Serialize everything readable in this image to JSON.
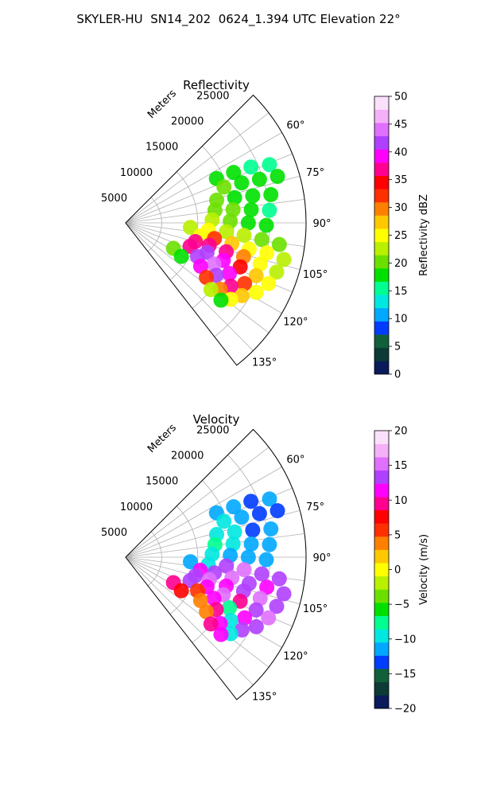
{
  "figure": {
    "title": "SKYLER-HU  SN14_202  0624_1.394 UTC Elevation 22°"
  },
  "chart_data": [
    {
      "type": "heatmap",
      "projection": "polar-sector",
      "title": "Reflectivity",
      "radial_axis_label": "Meters",
      "radial_ticks": [
        5000,
        10000,
        15000,
        20000,
        25000
      ],
      "radial_tick_labels": [
        "5000",
        "10000",
        "15000",
        "20000",
        "25000"
      ],
      "r_range": [
        0,
        25000
      ],
      "angle_ticks": [
        60,
        75,
        90,
        105,
        120,
        135
      ],
      "angle_tick_labels": [
        "60°",
        "75°",
        "90°",
        "105°",
        "120°",
        "135°"
      ],
      "angle_range": [
        45,
        142
      ],
      "grid": true,
      "colorbar": {
        "label": "Reflectivity dBZ",
        "range": [
          0,
          50
        ],
        "ticks": [
          0,
          5,
          10,
          15,
          20,
          25,
          30,
          35,
          40,
          45,
          50
        ],
        "tick_labels": [
          "0",
          "5",
          "10",
          "15",
          "20",
          "25",
          "30",
          "35",
          "40",
          "45",
          "50"
        ],
        "colors": [
          "#0a1a5a",
          "#0c3a34",
          "#11603a",
          "#003cff",
          "#00a8ff",
          "#00e8e0",
          "#00ff90",
          "#00e000",
          "#6be000",
          "#b8f000",
          "#ffff00",
          "#ffc800",
          "#ff8000",
          "#ff3000",
          "#ff0000",
          "#ff0090",
          "#ff00ff",
          "#b040ff",
          "#e070ff",
          "#f4b0f8",
          "#fbe0fb"
        ]
      },
      "cells": [
        {
          "angle": 64,
          "r": 14000,
          "value": 17
        },
        {
          "angle": 65,
          "r": 16500,
          "value": 18
        },
        {
          "angle": 66,
          "r": 19000,
          "value": 16
        },
        {
          "angle": 68,
          "r": 21500,
          "value": 15
        },
        {
          "angle": 70,
          "r": 14500,
          "value": 20
        },
        {
          "angle": 71,
          "r": 17000,
          "value": 19
        },
        {
          "angle": 72,
          "r": 19500,
          "value": 18
        },
        {
          "angle": 73,
          "r": 22000,
          "value": 17
        },
        {
          "angle": 76,
          "r": 13000,
          "value": 21
        },
        {
          "angle": 77,
          "r": 15500,
          "value": 19
        },
        {
          "angle": 78,
          "r": 18000,
          "value": 18
        },
        {
          "angle": 79,
          "r": 20500,
          "value": 17
        },
        {
          "angle": 82,
          "r": 12500,
          "value": 21
        },
        {
          "angle": 83,
          "r": 15000,
          "value": 20
        },
        {
          "angle": 84,
          "r": 17500,
          "value": 19
        },
        {
          "angle": 85,
          "r": 20000,
          "value": 16
        },
        {
          "angle": 88,
          "r": 12000,
          "value": 22
        },
        {
          "angle": 89,
          "r": 14500,
          "value": 21
        },
        {
          "angle": 90,
          "r": 17000,
          "value": 19
        },
        {
          "angle": 91,
          "r": 19500,
          "value": 18
        },
        {
          "angle": 94,
          "r": 9000,
          "value": 22
        },
        {
          "angle": 95,
          "r": 11500,
          "value": 24
        },
        {
          "angle": 95,
          "r": 14000,
          "value": 23
        },
        {
          "angle": 96,
          "r": 16500,
          "value": 22
        },
        {
          "angle": 97,
          "r": 19000,
          "value": 21
        },
        {
          "angle": 98,
          "r": 21500,
          "value": 20
        },
        {
          "angle": 100,
          "r": 10500,
          "value": 26
        },
        {
          "angle": 100,
          "r": 12500,
          "value": 33
        },
        {
          "angle": 101,
          "r": 15000,
          "value": 28
        },
        {
          "angle": 102,
          "r": 17500,
          "value": 26
        },
        {
          "angle": 102,
          "r": 20000,
          "value": 24
        },
        {
          "angle": 103,
          "r": 22500,
          "value": 22
        },
        {
          "angle": 105,
          "r": 10000,
          "value": 36
        },
        {
          "angle": 105,
          "r": 12000,
          "value": 38
        },
        {
          "angle": 106,
          "r": 14500,
          "value": 37
        },
        {
          "angle": 106,
          "r": 17000,
          "value": 30
        },
        {
          "angle": 107,
          "r": 19500,
          "value": 26
        },
        {
          "angle": 108,
          "r": 22000,
          "value": 23
        },
        {
          "angle": 110,
          "r": 9500,
          "value": 37
        },
        {
          "angle": 110,
          "r": 12000,
          "value": 42
        },
        {
          "angle": 111,
          "r": 14500,
          "value": 39
        },
        {
          "angle": 111,
          "r": 17000,
          "value": 34
        },
        {
          "angle": 112,
          "r": 19500,
          "value": 27
        },
        {
          "angle": 113,
          "r": 21500,
          "value": 24
        },
        {
          "angle": 115,
          "r": 11000,
          "value": 41
        },
        {
          "angle": 115,
          "r": 13500,
          "value": 44
        },
        {
          "angle": 116,
          "r": 16000,
          "value": 40
        },
        {
          "angle": 117,
          "r": 18500,
          "value": 33
        },
        {
          "angle": 118,
          "r": 20500,
          "value": 26
        },
        {
          "angle": 120,
          "r": 12000,
          "value": 39
        },
        {
          "angle": 120,
          "r": 14500,
          "value": 42
        },
        {
          "angle": 121,
          "r": 17000,
          "value": 36
        },
        {
          "angle": 122,
          "r": 19000,
          "value": 28
        },
        {
          "angle": 124,
          "r": 13500,
          "value": 32
        },
        {
          "angle": 125,
          "r": 16000,
          "value": 29
        },
        {
          "angle": 126,
          "r": 18000,
          "value": 24
        },
        {
          "angle": 128,
          "r": 15000,
          "value": 22
        },
        {
          "angle": 129,
          "r": 17000,
          "value": 19
        },
        {
          "angle": 118,
          "r": 7500,
          "value": 21
        },
        {
          "angle": 121,
          "r": 9000,
          "value": 18
        }
      ]
    },
    {
      "type": "heatmap",
      "projection": "polar-sector",
      "title": "Velocity",
      "radial_axis_label": "Meters",
      "radial_ticks": [
        5000,
        10000,
        15000,
        20000,
        25000
      ],
      "radial_tick_labels": [
        "5000",
        "10000",
        "15000",
        "20000",
        "25000"
      ],
      "r_range": [
        0,
        25000
      ],
      "angle_ticks": [
        60,
        75,
        90,
        105,
        120,
        135
      ],
      "angle_tick_labels": [
        "60°",
        "75°",
        "90°",
        "105°",
        "120°",
        "135°"
      ],
      "angle_range": [
        45,
        142
      ],
      "grid": true,
      "colorbar": {
        "label": "Velocity (m/s)",
        "range": [
          -20,
          20
        ],
        "ticks": [
          -20,
          -15,
          -10,
          -5,
          0,
          5,
          10,
          15,
          20
        ],
        "tick_labels": [
          "−20",
          "−15",
          "−10",
          "−5",
          "0",
          "5",
          "10",
          "15",
          "20"
        ],
        "colors": [
          "#0a1a5a",
          "#0c3a34",
          "#11603a",
          "#003cff",
          "#00a8ff",
          "#00e8e0",
          "#00ff90",
          "#00e000",
          "#6be000",
          "#b8f000",
          "#ffff00",
          "#ffc800",
          "#ff8000",
          "#ff3000",
          "#ff0000",
          "#ff0090",
          "#ff00ff",
          "#b040ff",
          "#e070ff",
          "#f4b0f8",
          "#fbe0fb"
        ]
      },
      "cells": [
        {
          "angle": 64,
          "r": 14000,
          "value": -11
        },
        {
          "angle": 65,
          "r": 16500,
          "value": -12
        },
        {
          "angle": 66,
          "r": 19000,
          "value": -13
        },
        {
          "angle": 68,
          "r": 21500,
          "value": -12
        },
        {
          "angle": 70,
          "r": 14500,
          "value": -9
        },
        {
          "angle": 71,
          "r": 17000,
          "value": -11
        },
        {
          "angle": 72,
          "r": 19500,
          "value": -14
        },
        {
          "angle": 73,
          "r": 22000,
          "value": -13
        },
        {
          "angle": 76,
          "r": 13000,
          "value": -9
        },
        {
          "angle": 77,
          "r": 15500,
          "value": -10
        },
        {
          "angle": 78,
          "r": 18000,
          "value": -13
        },
        {
          "angle": 79,
          "r": 20500,
          "value": -12
        },
        {
          "angle": 82,
          "r": 12500,
          "value": -8
        },
        {
          "angle": 83,
          "r": 15000,
          "value": -10
        },
        {
          "angle": 84,
          "r": 17500,
          "value": -11
        },
        {
          "angle": 85,
          "r": 20000,
          "value": -12
        },
        {
          "angle": 88,
          "r": 12000,
          "value": -9
        },
        {
          "angle": 89,
          "r": 14500,
          "value": -11
        },
        {
          "angle": 90,
          "r": 17000,
          "value": -12
        },
        {
          "angle": 91,
          "r": 19500,
          "value": -11
        },
        {
          "angle": 94,
          "r": 9000,
          "value": -12
        },
        {
          "angle": 95,
          "r": 11500,
          "value": -10
        },
        {
          "angle": 95,
          "r": 14000,
          "value": 13
        },
        {
          "angle": 96,
          "r": 16500,
          "value": 15
        },
        {
          "angle": 97,
          "r": 19000,
          "value": 14
        },
        {
          "angle": 98,
          "r": 21500,
          "value": 13
        },
        {
          "angle": 100,
          "r": 10500,
          "value": 12
        },
        {
          "angle": 100,
          "r": 12500,
          "value": 14
        },
        {
          "angle": 101,
          "r": 15000,
          "value": 15
        },
        {
          "angle": 102,
          "r": 17500,
          "value": 14
        },
        {
          "angle": 102,
          "r": 20000,
          "value": 12
        },
        {
          "angle": 103,
          "r": 22500,
          "value": 14
        },
        {
          "angle": 105,
          "r": 10000,
          "value": 13
        },
        {
          "angle": 105,
          "r": 12000,
          "value": 15
        },
        {
          "angle": 106,
          "r": 14500,
          "value": 11
        },
        {
          "angle": 106,
          "r": 17000,
          "value": 14
        },
        {
          "angle": 107,
          "r": 19500,
          "value": 15
        },
        {
          "angle": 108,
          "r": 22000,
          "value": 13
        },
        {
          "angle": 110,
          "r": 9500,
          "value": 14
        },
        {
          "angle": 110,
          "r": 12000,
          "value": 12
        },
        {
          "angle": 111,
          "r": 14500,
          "value": 15
        },
        {
          "angle": 111,
          "r": 17000,
          "value": 10
        },
        {
          "angle": 112,
          "r": 19500,
          "value": 13
        },
        {
          "angle": 113,
          "r": 21500,
          "value": 15
        },
        {
          "angle": 115,
          "r": 11000,
          "value": 6
        },
        {
          "angle": 115,
          "r": 13500,
          "value": 11
        },
        {
          "angle": 116,
          "r": 16000,
          "value": -7
        },
        {
          "angle": 117,
          "r": 18500,
          "value": 12
        },
        {
          "angle": 118,
          "r": 20500,
          "value": 14
        },
        {
          "angle": 120,
          "r": 12000,
          "value": 4
        },
        {
          "angle": 120,
          "r": 14500,
          "value": 9
        },
        {
          "angle": 121,
          "r": 17000,
          "value": -9
        },
        {
          "angle": 122,
          "r": 19000,
          "value": 13
        },
        {
          "angle": 124,
          "r": 13500,
          "value": 3
        },
        {
          "angle": 125,
          "r": 16000,
          "value": 11
        },
        {
          "angle": 126,
          "r": 18000,
          "value": -10
        },
        {
          "angle": 128,
          "r": 15000,
          "value": 9
        },
        {
          "angle": 129,
          "r": 17000,
          "value": 11
        },
        {
          "angle": 118,
          "r": 7500,
          "value": 10
        },
        {
          "angle": 121,
          "r": 9000,
          "value": 8
        }
      ]
    }
  ]
}
